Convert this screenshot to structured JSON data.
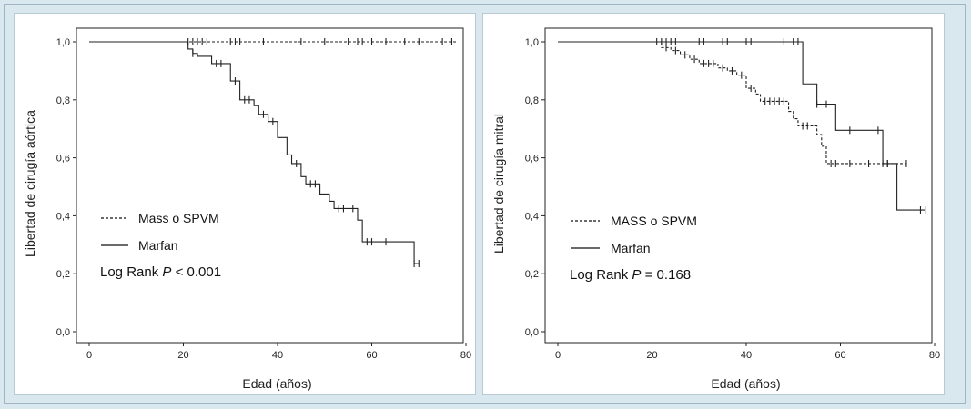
{
  "chart_data": [
    {
      "type": "line",
      "subtype": "kaplan-meier",
      "xlabel": "Edad (años)",
      "ylabel": "Libertad de cirugía aórtica",
      "xlim": [
        0,
        80
      ],
      "ylim": [
        0,
        1
      ],
      "xticks": [
        "0",
        "20",
        "40",
        "60",
        "80"
      ],
      "yticks": [
        "0,0",
        "0,2",
        "0,4",
        "0,6",
        "0,8",
        "1,0"
      ],
      "legend": [
        {
          "label": "Mass o SPVM",
          "style": "dashed"
        },
        {
          "label": "Marfan",
          "style": "solid"
        }
      ],
      "annotation": {
        "prefix": "Log Rank ",
        "p": "P",
        "rest": " < 0.001"
      },
      "series": [
        {
          "name": "Mass o SPVM",
          "style": "dashed",
          "steps": [
            [
              0,
              1.0
            ],
            [
              78,
              1.0
            ]
          ],
          "censored": [
            [
              21,
              1.0
            ],
            [
              22,
              1.0
            ],
            [
              23,
              1.0
            ],
            [
              24,
              1.0
            ],
            [
              25,
              1.0
            ],
            [
              30,
              1.0
            ],
            [
              31,
              1.0
            ],
            [
              32,
              1.0
            ],
            [
              37,
              1.0
            ],
            [
              45,
              1.0
            ],
            [
              50,
              1.0
            ],
            [
              55,
              1.0
            ],
            [
              57,
              1.0
            ],
            [
              58,
              1.0
            ],
            [
              60,
              1.0
            ],
            [
              63,
              1.0
            ],
            [
              67,
              1.0
            ],
            [
              70,
              1.0
            ],
            [
              75,
              1.0
            ],
            [
              77,
              1.0
            ]
          ]
        },
        {
          "name": "Marfan",
          "style": "solid",
          "steps": [
            [
              0,
              1.0
            ],
            [
              20,
              1.0
            ],
            [
              21,
              0.975
            ],
            [
              22,
              0.96
            ],
            [
              23,
              0.95
            ],
            [
              26,
              0.925
            ],
            [
              30,
              0.865
            ],
            [
              32,
              0.8
            ],
            [
              35,
              0.78
            ],
            [
              36,
              0.75
            ],
            [
              38,
              0.725
            ],
            [
              40,
              0.67
            ],
            [
              42,
              0.61
            ],
            [
              43,
              0.58
            ],
            [
              45,
              0.535
            ],
            [
              46,
              0.51
            ],
            [
              49,
              0.475
            ],
            [
              51,
              0.45
            ],
            [
              52,
              0.425
            ],
            [
              57,
              0.385
            ],
            [
              58,
              0.31
            ],
            [
              69,
              0.235
            ],
            [
              70,
              0.235
            ]
          ],
          "censored": [
            [
              22,
              0.96
            ],
            [
              27,
              0.925
            ],
            [
              28,
              0.925
            ],
            [
              31,
              0.865
            ],
            [
              33,
              0.8
            ],
            [
              34,
              0.8
            ],
            [
              37,
              0.75
            ],
            [
              39,
              0.725
            ],
            [
              44,
              0.58
            ],
            [
              47,
              0.51
            ],
            [
              48,
              0.51
            ],
            [
              53,
              0.425
            ],
            [
              54,
              0.425
            ],
            [
              56,
              0.425
            ],
            [
              59,
              0.31
            ],
            [
              60,
              0.31
            ],
            [
              63,
              0.31
            ],
            [
              69,
              0.235
            ],
            [
              70,
              0.235
            ]
          ]
        }
      ]
    },
    {
      "type": "line",
      "subtype": "kaplan-meier",
      "xlabel": "Edad (años)",
      "ylabel": "Libertad de cirugía mitral",
      "xlim": [
        0,
        80
      ],
      "ylim": [
        0,
        1
      ],
      "xticks": [
        "0",
        "20",
        "40",
        "60",
        "80"
      ],
      "yticks": [
        "0,0",
        "0,2",
        "0,4",
        "0,6",
        "0,8",
        "1,0"
      ],
      "legend": [
        {
          "label": "MASS o SPVM",
          "style": "dashed"
        },
        {
          "label": "Marfan",
          "style": "solid"
        }
      ],
      "annotation": {
        "prefix": "Log Rank ",
        "p": "P",
        "rest": " = 0.168"
      },
      "series": [
        {
          "name": "MASS o SPVM",
          "style": "dashed",
          "steps": [
            [
              0,
              1.0
            ],
            [
              21,
              1.0
            ],
            [
              22,
              0.98
            ],
            [
              24,
              0.97
            ],
            [
              26,
              0.955
            ],
            [
              28,
              0.94
            ],
            [
              30,
              0.925
            ],
            [
              34,
              0.91
            ],
            [
              36,
              0.9
            ],
            [
              38,
              0.885
            ],
            [
              40,
              0.84
            ],
            [
              42,
              0.82
            ],
            [
              43,
              0.795
            ],
            [
              49,
              0.76
            ],
            [
              50,
              0.735
            ],
            [
              51,
              0.71
            ],
            [
              55,
              0.68
            ],
            [
              56,
              0.64
            ],
            [
              57,
              0.58
            ],
            [
              74,
              0.58
            ]
          ],
          "censored": [
            [
              23,
              0.98
            ],
            [
              25,
              0.97
            ],
            [
              27,
              0.955
            ],
            [
              29,
              0.94
            ],
            [
              31,
              0.925
            ],
            [
              32,
              0.925
            ],
            [
              33,
              0.925
            ],
            [
              35,
              0.91
            ],
            [
              37,
              0.9
            ],
            [
              39,
              0.885
            ],
            [
              41,
              0.84
            ],
            [
              44,
              0.795
            ],
            [
              45,
              0.795
            ],
            [
              46,
              0.795
            ],
            [
              47,
              0.795
            ],
            [
              48,
              0.795
            ],
            [
              52,
              0.71
            ],
            [
              53,
              0.71
            ],
            [
              58,
              0.58
            ],
            [
              59,
              0.58
            ],
            [
              62,
              0.58
            ],
            [
              66,
              0.58
            ],
            [
              70,
              0.58
            ],
            [
              74,
              0.58
            ]
          ]
        },
        {
          "name": "Marfan",
          "style": "solid",
          "steps": [
            [
              0,
              1.0
            ],
            [
              52,
              1.0
            ],
            [
              52,
              0.855
            ],
            [
              55,
              0.785
            ],
            [
              59,
              0.695
            ],
            [
              69,
              0.58
            ],
            [
              72,
              0.42
            ],
            [
              78,
              0.42
            ]
          ],
          "censored": [
            [
              21,
              1.0
            ],
            [
              22,
              1.0
            ],
            [
              23,
              1.0
            ],
            [
              24,
              1.0
            ],
            [
              25,
              1.0
            ],
            [
              30,
              1.0
            ],
            [
              31,
              1.0
            ],
            [
              35,
              1.0
            ],
            [
              36,
              1.0
            ],
            [
              40,
              1.0
            ],
            [
              41,
              1.0
            ],
            [
              48,
              1.0
            ],
            [
              50,
              1.0
            ],
            [
              51,
              1.0
            ],
            [
              55,
              0.785
            ],
            [
              57,
              0.785
            ],
            [
              62,
              0.695
            ],
            [
              68,
              0.695
            ],
            [
              69,
              0.58
            ],
            [
              70,
              0.58
            ],
            [
              77,
              0.42
            ],
            [
              78,
              0.42
            ]
          ]
        }
      ]
    }
  ]
}
